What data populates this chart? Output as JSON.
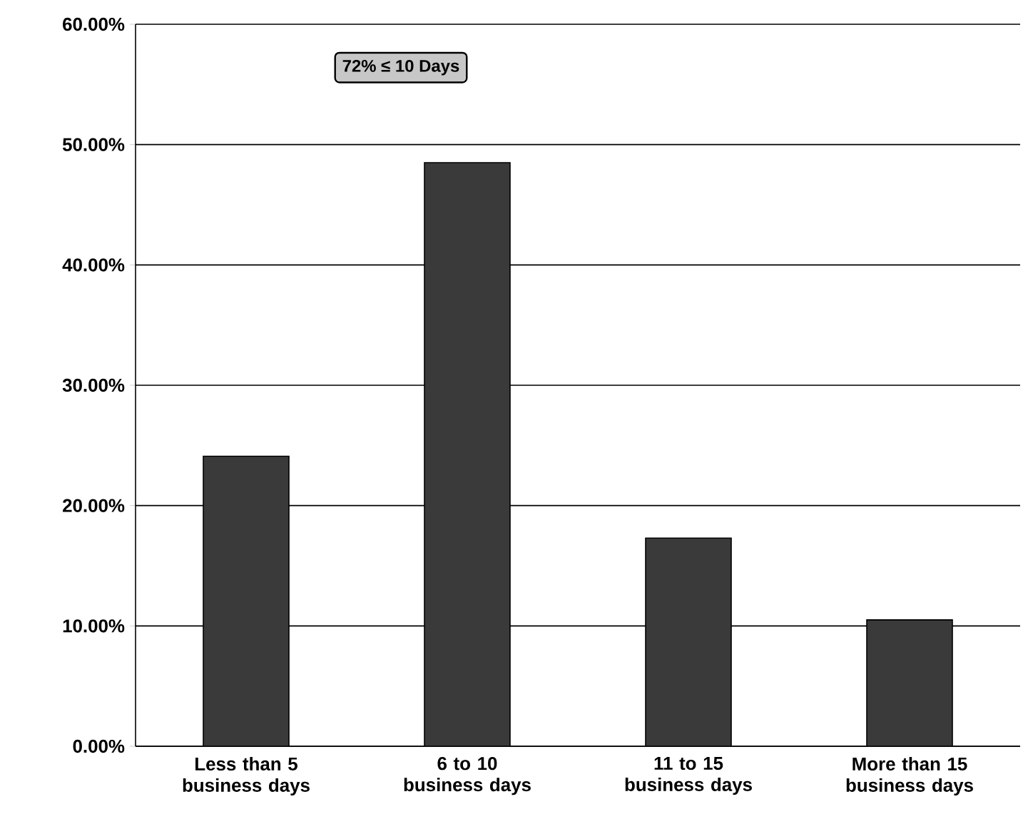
{
  "chart_data": {
    "type": "bar",
    "categories": [
      "Less than 5 business days",
      "6 to 10 business days",
      "11 to 15 business days",
      "More than 15 business days"
    ],
    "values": [
      24.1,
      48.5,
      17.3,
      10.5
    ],
    "color": "#3a3a3a",
    "ylim": [
      0,
      60
    ],
    "yticks": [
      {
        "value": 0,
        "label": "0.00%"
      },
      {
        "value": 10,
        "label": "10.00%"
      },
      {
        "value": 20,
        "label": "20.00%"
      },
      {
        "value": 30,
        "label": "30.00%"
      },
      {
        "value": 40,
        "label": "40.00%"
      },
      {
        "value": 50,
        "label": "50.00%"
      },
      {
        "value": 60,
        "label": "60.00%"
      }
    ],
    "grid": "y",
    "annotations": [
      "72% ≤ 10 Days"
    ]
  }
}
